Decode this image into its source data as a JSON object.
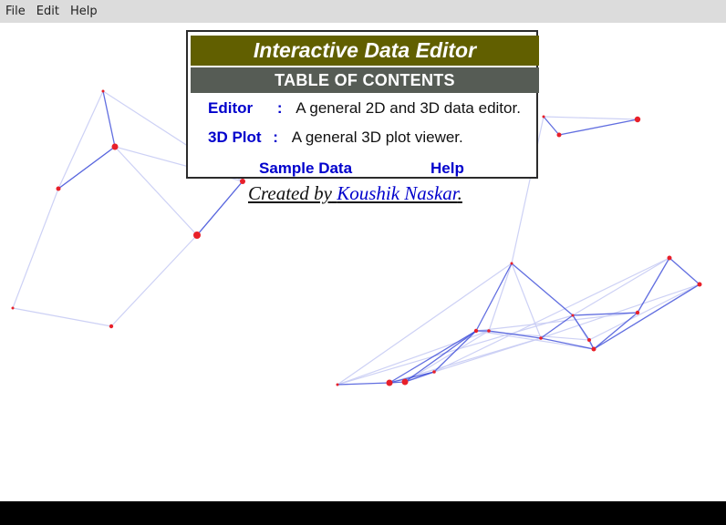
{
  "menu": {
    "items": [
      "File",
      "Edit",
      "Help"
    ]
  },
  "toc": {
    "title": "Interactive Data Editor",
    "subtitle": "TABLE OF CONTENTS",
    "rows": [
      {
        "name": "Editor",
        "separator": ":",
        "description": "A general 2D and 3D data editor."
      },
      {
        "name": "3D Plot",
        "separator": ":",
        "description": "A general 3D plot viewer."
      }
    ],
    "links": {
      "sample_data": "Sample Data",
      "help": "Help"
    }
  },
  "credit": {
    "prefix": "Created by",
    "author": "Koushik Naskar",
    "suffix": "."
  },
  "colors": {
    "title_bg": "#615f00",
    "subtitle_bg": "#565c55",
    "node": "#e8202a",
    "edge_strong": "#3a4ad8",
    "edge_faint": "#c8ccf4",
    "menubar": "#dcdcdc"
  }
}
